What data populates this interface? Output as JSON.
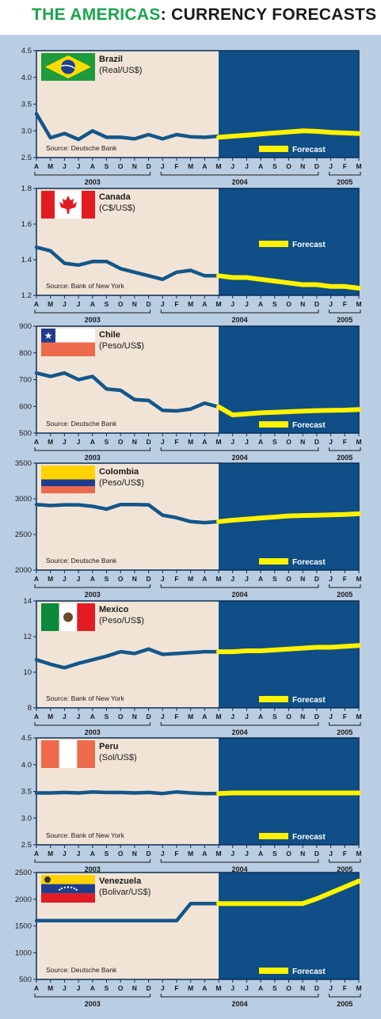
{
  "page": {
    "title_part1": "THE AMERICAS",
    "title_part2": ": CURRENCY FORECASTS"
  },
  "colors": {
    "history_bg": "#f1e4d6",
    "forecast_bg": "#0f4e86",
    "history_line": "#13568a",
    "forecast_line": "#fff200",
    "outer_bg": "#b9cde3"
  },
  "months": [
    "A",
    "M",
    "J",
    "J",
    "A",
    "S",
    "O",
    "N",
    "D",
    "J",
    "F",
    "M",
    "A",
    "M",
    "J",
    "J",
    "A",
    "S",
    "O",
    "N",
    "D",
    "J",
    "F",
    "M"
  ],
  "years": [
    {
      "label": "2003",
      "start": 0,
      "end": 8
    },
    {
      "label": "2004",
      "start": 9,
      "end": 20
    },
    {
      "label": "2005",
      "start": 21,
      "end": 23
    }
  ],
  "chart_data": [
    {
      "type": "line",
      "name": "Brazil",
      "unit": "(Real/US$)",
      "source": "Source: Deutsche Bank",
      "legend": "Forecast",
      "legend_position": "bottom-right",
      "flag": "brazil-flag-icon",
      "ylim": [
        2.5,
        4.5
      ],
      "yticks": [
        "2.5",
        "3.0",
        "3.5",
        "4.0",
        "4.5"
      ],
      "history": [
        3.32,
        2.87,
        2.95,
        2.84,
        3.0,
        2.88,
        2.88,
        2.85,
        2.93,
        2.85,
        2.93,
        2.89,
        2.88,
        2.9
      ],
      "forecast": [
        2.88,
        2.9,
        2.92,
        2.94,
        2.96,
        2.98,
        3.0,
        2.99,
        2.97,
        2.96,
        2.95
      ]
    },
    {
      "type": "line",
      "name": "Canada",
      "unit": "(C$/US$)",
      "source": "Source: Bank of New York",
      "legend": "Forecast",
      "legend_position": "right",
      "flag": "canada-flag-icon",
      "ylim": [
        1.2,
        1.8
      ],
      "yticks": [
        "1.2",
        "1.4",
        "1.6",
        "1.8"
      ],
      "history": [
        1.47,
        1.45,
        1.38,
        1.37,
        1.39,
        1.39,
        1.35,
        1.33,
        1.31,
        1.29,
        1.33,
        1.34,
        1.31,
        1.31
      ],
      "forecast": [
        1.31,
        1.3,
        1.3,
        1.29,
        1.28,
        1.27,
        1.26,
        1.26,
        1.25,
        1.25,
        1.24
      ]
    },
    {
      "type": "line",
      "name": "Chile",
      "unit": "(Peso/US$)",
      "source": "Source: Deutsche Bank",
      "legend": "Forecast",
      "legend_position": "bottom-right",
      "flag": "chile-flag-icon",
      "ylim": [
        500,
        900
      ],
      "yticks": [
        "500",
        "600",
        "700",
        "800",
        "900"
      ],
      "history": [
        725,
        712,
        725,
        700,
        712,
        665,
        660,
        625,
        622,
        585,
        583,
        590,
        612,
        598
      ],
      "forecast": [
        598,
        568,
        572,
        576,
        578,
        580,
        582,
        584,
        585,
        586,
        588
      ]
    },
    {
      "type": "line",
      "name": "Colombia",
      "unit": "(Peso/US$)",
      "source": "Source: Deutsche Bank",
      "legend": "Forecast",
      "legend_position": "bottom-right",
      "flag": "colombia-flag-icon",
      "ylim": [
        2000,
        3500
      ],
      "yticks": [
        "2000",
        "2500",
        "3000",
        "3500"
      ],
      "history": [
        2920,
        2905,
        2915,
        2915,
        2895,
        2855,
        2920,
        2920,
        2915,
        2770,
        2735,
        2680,
        2665,
        2680
      ],
      "forecast": [
        2680,
        2700,
        2715,
        2730,
        2745,
        2760,
        2765,
        2770,
        2775,
        2780,
        2790
      ]
    },
    {
      "type": "line",
      "name": "Mexico",
      "unit": "(Peso/US$)",
      "source": "Source: Bank of New York",
      "legend": "Forecast",
      "legend_position": "bottom-right",
      "flag": "mexico-flag-icon",
      "ylim": [
        8,
        14
      ],
      "yticks": [
        "8",
        "10",
        "12",
        "14"
      ],
      "history": [
        10.7,
        10.45,
        10.25,
        10.5,
        10.7,
        10.9,
        11.15,
        11.05,
        11.3,
        11.0,
        11.05,
        11.1,
        11.15,
        11.15
      ],
      "forecast": [
        11.15,
        11.15,
        11.2,
        11.2,
        11.25,
        11.3,
        11.35,
        11.4,
        11.4,
        11.45,
        11.5
      ]
    },
    {
      "type": "line",
      "name": "Peru",
      "unit": "(Sol/US$)",
      "source": "Source: Bank of New York",
      "legend": "Forecast",
      "legend_position": "bottom-right",
      "flag": "peru-flag-icon",
      "ylim": [
        2.5,
        4.5
      ],
      "yticks": [
        "2.5",
        "3.0",
        "3.5",
        "4.0",
        "4.5"
      ],
      "history": [
        3.47,
        3.47,
        3.48,
        3.47,
        3.49,
        3.48,
        3.48,
        3.47,
        3.48,
        3.46,
        3.49,
        3.47,
        3.46,
        3.46
      ],
      "forecast": [
        3.46,
        3.47,
        3.47,
        3.47,
        3.47,
        3.47,
        3.47,
        3.47,
        3.47,
        3.47,
        3.47
      ]
    },
    {
      "type": "line",
      "name": "Venezuela",
      "unit": "(Bolivar/US$)",
      "source": "Source: Deutsche Bank",
      "legend": "Forecast",
      "legend_position": "bottom-right",
      "flag": "venezuela-flag-icon",
      "ylim": [
        500,
        2500
      ],
      "yticks": [
        "500",
        "1000",
        "1500",
        "2000",
        "2500"
      ],
      "history": [
        1600,
        1600,
        1600,
        1600,
        1600,
        1600,
        1600,
        1600,
        1600,
        1600,
        1600,
        1920,
        1920,
        1920
      ],
      "forecast": [
        1920,
        1920,
        1920,
        1920,
        1920,
        1920,
        1920,
        2010,
        2120,
        2230,
        2340
      ]
    }
  ]
}
